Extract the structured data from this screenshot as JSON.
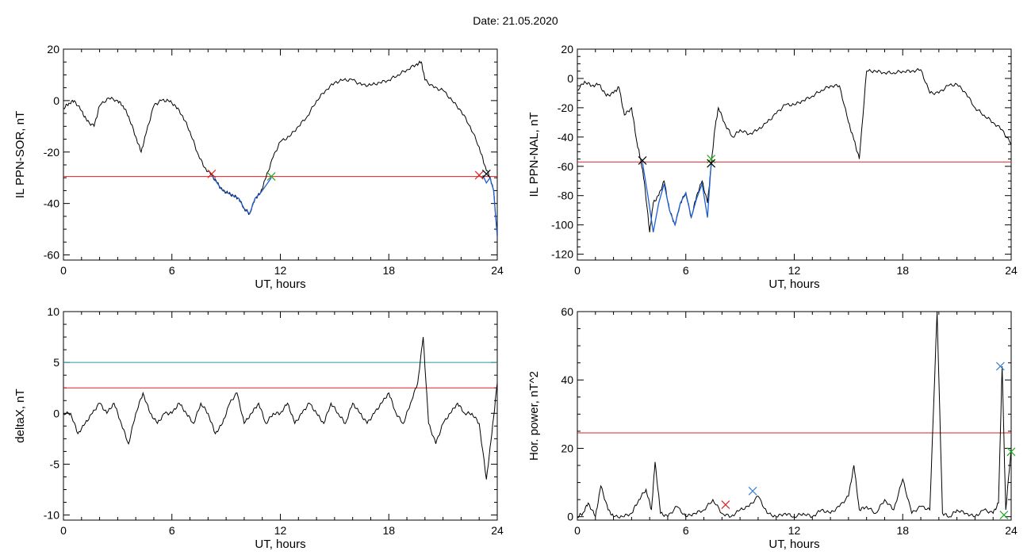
{
  "page": {
    "title": "Date:  21.05.2020"
  },
  "colors": {
    "trace": "#000000",
    "highlight": "#1f5fd6",
    "threshold_red": "#e02020",
    "threshold_teal": "#2a9aa8",
    "marker_green": "#22aa22",
    "marker_blue": "#3a7fd0"
  },
  "chart_data": [
    {
      "id": "il_ppn_sor",
      "type": "line",
      "ylabel": "IL PPN-SOR, nT",
      "xlabel": "UT, hours",
      "xlim": [
        0,
        24
      ],
      "ylim": [
        -62,
        20
      ],
      "xticks": [
        0,
        6,
        12,
        18,
        24
      ],
      "yticks": [
        -60,
        -40,
        -20,
        0,
        20
      ],
      "series": [
        {
          "x": [
            0,
            0.3,
            0.6,
            1,
            1.3,
            1.7,
            2,
            2.5,
            3,
            3.3,
            3.6,
            4,
            4.3,
            4.6,
            5,
            5.4,
            5.8,
            6.2,
            6.6,
            7,
            7.4,
            7.8,
            8.2,
            8.5,
            8.8,
            9.1,
            9.4,
            9.7,
            10,
            10.3,
            10.6,
            10.9,
            11.2,
            11.6,
            12,
            12.5,
            13,
            13.5,
            14,
            14.5,
            15,
            15.5,
            16,
            16.5,
            17,
            17.5,
            18,
            18.5,
            19,
            19.5,
            19.8,
            20,
            20.5,
            21,
            21.5,
            22,
            22.5,
            23,
            23.3,
            23.6,
            23.8,
            24
          ],
          "y": [
            -3,
            -1,
            0,
            -4,
            -8,
            -10,
            -2,
            1,
            0,
            -2,
            -6,
            -14,
            -20,
            -12,
            -2,
            0,
            0,
            -2,
            -6,
            -12,
            -20,
            -26,
            -29,
            -32,
            -35,
            -36,
            -37,
            -38,
            -42,
            -44,
            -38,
            -36,
            -30,
            -22,
            -16,
            -14,
            -10,
            -6,
            0,
            4,
            7,
            8,
            8,
            6,
            6,
            7,
            8,
            10,
            12,
            14,
            15,
            8,
            5,
            4,
            0,
            -4,
            -10,
            -18,
            -25,
            -30,
            -35,
            -53
          ]
        }
      ],
      "highlight_segments": [
        {
          "x": [
            8.2,
            8.5,
            8.8,
            9.1,
            9.4,
            9.7,
            10,
            10.3,
            10.6,
            10.9,
            11.2,
            11.5
          ],
          "y": [
            -29,
            -32,
            -35,
            -36,
            -37,
            -38,
            -42,
            -44,
            -38,
            -36,
            -33,
            -30
          ]
        },
        {
          "x": [
            23.2,
            23.4,
            23.6,
            23.8,
            24
          ],
          "y": [
            -29,
            -32,
            -30,
            -35,
            -53
          ]
        }
      ],
      "thresholds": [
        {
          "y": -29.5,
          "color": "red"
        }
      ],
      "markers": [
        {
          "x": 8.2,
          "y": -28.5,
          "color": "red"
        },
        {
          "x": 11.5,
          "y": -29.5,
          "color": "green"
        },
        {
          "x": 23.0,
          "y": -29,
          "color": "red"
        },
        {
          "x": 23.4,
          "y": -28.5,
          "color": "black"
        }
      ]
    },
    {
      "id": "il_ppn_nal",
      "type": "line",
      "ylabel": "IL PPN-NAL, nT",
      "xlabel": "UT, hours",
      "xlim": [
        0,
        24
      ],
      "ylim": [
        -124,
        20
      ],
      "xticks": [
        0,
        6,
        12,
        18,
        24
      ],
      "yticks": [
        -120,
        -100,
        -80,
        -60,
        -40,
        -20,
        0,
        20
      ],
      "series": [
        {
          "x": [
            0,
            0.4,
            0.8,
            1.2,
            1.6,
            2,
            2.3,
            2.6,
            3,
            3.3,
            3.5,
            3.7,
            4,
            4.2,
            4.5,
            4.8,
            5.1,
            5.4,
            5.7,
            6,
            6.3,
            6.6,
            6.9,
            7.2,
            7.4,
            7.6,
            7.8,
            8.2,
            8.6,
            9,
            9.5,
            10,
            10.5,
            11,
            11.5,
            12,
            12.5,
            13,
            13.5,
            14,
            14.5,
            15,
            15.3,
            15.6,
            16,
            16.5,
            17,
            17.5,
            18,
            18.5,
            19,
            19.5,
            20,
            20.5,
            21,
            21.5,
            22,
            22.5,
            23,
            23.5,
            24
          ],
          "y": [
            -8,
            -2,
            -5,
            -4,
            -12,
            -10,
            -6,
            -25,
            -20,
            -44,
            -55,
            -70,
            -105,
            -85,
            -80,
            -70,
            -90,
            -100,
            -85,
            -78,
            -95,
            -80,
            -70,
            -85,
            -60,
            -35,
            -20,
            -32,
            -40,
            -35,
            -38,
            -35,
            -30,
            -24,
            -18,
            -18,
            -15,
            -12,
            -8,
            -5,
            -5,
            -30,
            -42,
            -55,
            5,
            5,
            4,
            4,
            5,
            5,
            6,
            -10,
            -10,
            -5,
            -4,
            -10,
            -20,
            -25,
            -30,
            -35,
            -45
          ]
        }
      ],
      "highlight_segments": [
        {
          "x": [
            3.6,
            3.9,
            4.2,
            4.5,
            4.8,
            5.1,
            5.4,
            5.7,
            6,
            6.3,
            6.6,
            6.9,
            7.2,
            7.4
          ],
          "y": [
            -57,
            -80,
            -105,
            -85,
            -72,
            -90,
            -100,
            -85,
            -78,
            -95,
            -82,
            -72,
            -95,
            -58
          ]
        }
      ],
      "thresholds": [
        {
          "y": -57,
          "color": "red"
        }
      ],
      "markers": [
        {
          "x": 3.6,
          "y": -56,
          "color": "black"
        },
        {
          "x": 7.4,
          "y": -55,
          "color": "green"
        },
        {
          "x": 7.4,
          "y": -58,
          "color": "black"
        }
      ]
    },
    {
      "id": "deltax",
      "type": "line",
      "ylabel": "deltaX, nT",
      "xlabel": "UT, hours",
      "xlim": [
        0,
        24
      ],
      "ylim": [
        -10.5,
        10
      ],
      "xticks": [
        0,
        6,
        12,
        18,
        24
      ],
      "yticks": [
        -10,
        -5,
        0,
        5,
        10
      ],
      "series": [
        {
          "x": [
            0,
            0.4,
            0.8,
            1.2,
            1.6,
            2,
            2.4,
            2.8,
            3.2,
            3.6,
            4,
            4.4,
            4.8,
            5.2,
            5.6,
            6,
            6.4,
            6.8,
            7.2,
            7.6,
            8,
            8.4,
            8.8,
            9.2,
            9.6,
            10,
            10.4,
            10.8,
            11.2,
            11.6,
            12,
            12.4,
            12.8,
            13.2,
            13.6,
            14,
            14.4,
            14.8,
            15.2,
            15.6,
            16,
            16.4,
            16.8,
            17.2,
            17.6,
            18,
            18.4,
            18.8,
            19.2,
            19.6,
            19.9,
            20.2,
            20.6,
            21,
            21.4,
            21.8,
            22.2,
            22.6,
            23,
            23.4,
            23.7,
            24
          ],
          "y": [
            0,
            0,
            -2,
            -1,
            0,
            1,
            0,
            1,
            -1,
            -3,
            0,
            2,
            0,
            -1,
            0,
            0,
            1,
            0,
            -1,
            1,
            0,
            -2,
            -1,
            1,
            2,
            -1,
            0,
            1,
            -1,
            0,
            0,
            1,
            -1,
            0,
            1,
            0,
            -1,
            1,
            0,
            -1,
            1,
            0,
            -1,
            0,
            1,
            2,
            0,
            -1,
            1,
            3,
            7.5,
            -1,
            -3,
            -1,
            0,
            1,
            0,
            0,
            -1,
            -6.5,
            -2,
            3
          ]
        }
      ],
      "highlight_segments": [],
      "thresholds": [
        {
          "y": 5,
          "color": "teal"
        },
        {
          "y": 2.5,
          "color": "red"
        }
      ],
      "markers": []
    },
    {
      "id": "hor_power",
      "type": "line",
      "ylabel": "Hor. power, nT^2",
      "xlabel": "UT, hours",
      "xlim": [
        0,
        24
      ],
      "ylim": [
        -1,
        60
      ],
      "xticks": [
        0,
        6,
        12,
        18,
        24
      ],
      "yticks": [
        0,
        20,
        40,
        60
      ],
      "series": [
        {
          "x": [
            0,
            0.3,
            0.6,
            1,
            1.3,
            1.7,
            2,
            2.5,
            3,
            3.4,
            3.8,
            4.1,
            4.3,
            4.6,
            5,
            5.5,
            6,
            6.5,
            7,
            7.5,
            8,
            8.5,
            9,
            9.5,
            10,
            10.5,
            11,
            11.5,
            12,
            12.5,
            13,
            13.5,
            14,
            14.5,
            15,
            15.3,
            15.6,
            16,
            16.5,
            17,
            17.5,
            18,
            18.5,
            19,
            19.5,
            19.9,
            20.2,
            20.6,
            21,
            21.5,
            22,
            22.5,
            23,
            23.3,
            23.5,
            23.7,
            24
          ],
          "y": [
            0,
            1,
            4,
            0,
            9,
            2,
            0,
            0,
            1,
            5,
            8,
            2,
            16,
            1,
            0,
            3,
            0,
            1,
            2,
            5,
            1,
            0,
            2,
            3,
            6,
            1,
            0,
            1,
            0,
            1,
            0,
            2,
            1,
            3,
            6,
            15,
            2,
            3,
            1,
            5,
            2,
            11,
            1,
            3,
            2,
            60,
            1,
            0,
            2,
            1,
            0,
            2,
            1,
            4,
            44,
            2,
            20
          ]
        }
      ],
      "highlight_segments": [],
      "thresholds": [
        {
          "y": 24.5,
          "color": "red"
        }
      ],
      "markers": [
        {
          "x": 8.2,
          "y": 3.5,
          "color": "red"
        },
        {
          "x": 9.7,
          "y": 7.5,
          "color": "blue"
        },
        {
          "x": 23.4,
          "y": 44,
          "color": "blue"
        },
        {
          "x": 23.6,
          "y": 0.5,
          "color": "green"
        },
        {
          "x": 24,
          "y": 19,
          "color": "green"
        }
      ]
    }
  ]
}
